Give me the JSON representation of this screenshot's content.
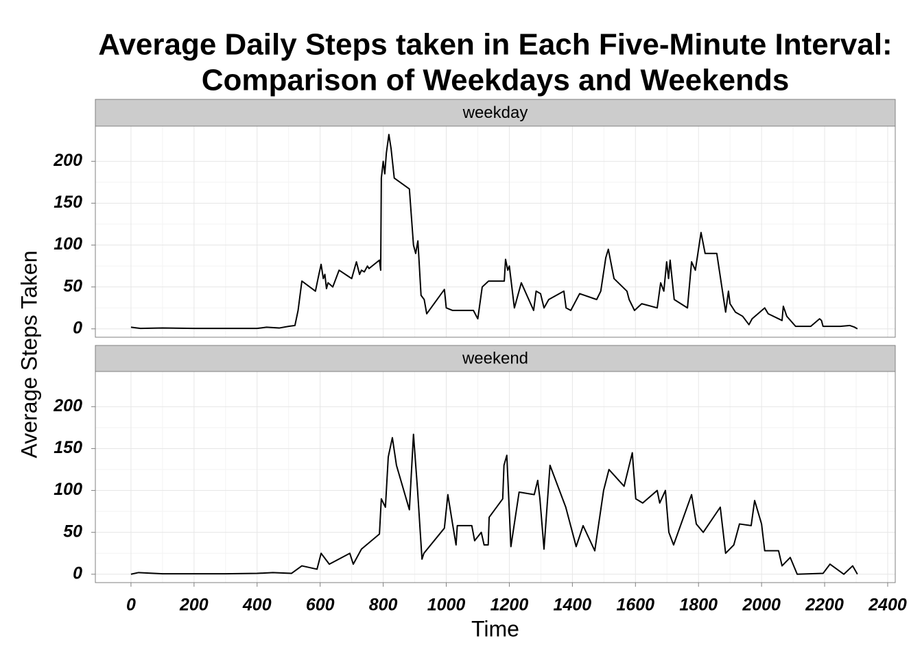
{
  "chart_data": {
    "type": "line",
    "title": [
      "Average Daily Steps taken in Each Five-Minute Interval:",
      "Comparison of Weekdays and Weekends"
    ],
    "x_label": "Time",
    "y_label": "Average Steps Taken",
    "xlim": [
      -113,
      2424
    ],
    "xticks": [
      0,
      200,
      400,
      600,
      800,
      1000,
      1200,
      1400,
      1600,
      1800,
      2000,
      2200,
      2400
    ],
    "ylim": [
      -10,
      242
    ],
    "yticks": [
      0,
      50,
      100,
      150,
      200
    ],
    "grid": true,
    "color": "#000000",
    "panels": [
      {
        "name": "weekday",
        "x": [
          0,
          30,
          100,
          200,
          300,
          400,
          430,
          470,
          500,
          520,
          530,
          542,
          585,
          596,
          603,
          610,
          615,
          620,
          625,
          640,
          660,
          700,
          715,
          725,
          731,
          740,
          750,
          755,
          788,
          792,
          794,
          800,
          805,
          810,
          818,
          825,
          835,
          883,
          896,
          903,
          910,
          920,
          930,
          938,
          994,
          1000,
          1020,
          1086,
          1100,
          1114,
          1134,
          1184,
          1188,
          1195,
          1200,
          1216,
          1238,
          1277,
          1285,
          1299,
          1310,
          1325,
          1373,
          1380,
          1395,
          1423,
          1477,
          1490,
          1506,
          1514,
          1532,
          1573,
          1580,
          1597,
          1620,
          1669,
          1680,
          1690,
          1699,
          1705,
          1710,
          1723,
          1765,
          1778,
          1790,
          1808,
          1821,
          1858,
          1886,
          1895,
          1900,
          1917,
          1940,
          1960,
          1970,
          2010,
          2021,
          2065,
          2069,
          2080,
          2108,
          2156,
          2184,
          2190,
          2195,
          2250,
          2280,
          2295,
          2304
        ],
        "values": [
          2,
          0.5,
          1,
          0.5,
          0.5,
          0.5,
          2,
          1,
          3,
          4,
          22,
          57,
          45,
          65,
          77,
          60,
          65,
          48,
          55,
          50,
          70,
          60,
          80,
          65,
          70,
          68,
          75,
          72,
          82,
          70,
          180,
          200,
          185,
          210,
          232,
          215,
          180,
          167,
          100,
          90,
          105,
          40,
          35,
          18,
          47,
          25,
          22,
          22,
          12,
          50,
          57,
          57,
          83,
          70,
          75,
          25,
          55,
          22,
          45,
          42,
          25,
          35,
          45,
          25,
          22,
          42,
          35,
          45,
          85,
          95,
          60,
          45,
          35,
          22,
          30,
          25,
          55,
          45,
          80,
          60,
          82,
          35,
          25,
          80,
          70,
          115,
          90,
          90,
          20,
          45,
          30,
          20,
          15,
          5,
          12,
          25,
          18,
          10,
          27,
          15,
          3,
          3,
          12,
          10,
          3,
          3,
          4,
          2,
          0
        ]
      },
      {
        "name": "weekend",
        "x": [
          0,
          24,
          100,
          200,
          300,
          400,
          450,
          509,
          542,
          590,
          603,
          629,
          694,
          705,
          731,
          788,
          794,
          807,
          816,
          829,
          842,
          883,
          896,
          909,
          923,
          929,
          994,
          1005,
          1020,
          1031,
          1035,
          1081,
          1090,
          1111,
          1120,
          1133,
          1136,
          1179,
          1183,
          1192,
          1205,
          1231,
          1279,
          1290,
          1297,
          1310,
          1329,
          1379,
          1412,
          1434,
          1471,
          1499,
          1516,
          1564,
          1590,
          1601,
          1623,
          1669,
          1677,
          1695,
          1706,
          1721,
          1778,
          1793,
          1815,
          1869,
          1886,
          1912,
          1930,
          1967,
          1978,
          2000,
          2010,
          2054,
          2065,
          2091,
          2113,
          2195,
          2217,
          2261,
          2289,
          2304
        ],
        "values": [
          0,
          2,
          0.5,
          0.5,
          0.5,
          1,
          2,
          1,
          10,
          6,
          25,
          12,
          25,
          12,
          30,
          48,
          90,
          80,
          140,
          163,
          130,
          77,
          167,
          100,
          18,
          25,
          55,
          95,
          60,
          35,
          58,
          58,
          40,
          50,
          35,
          35,
          68,
          90,
          130,
          142,
          33,
          98,
          95,
          112,
          90,
          30,
          130,
          80,
          33,
          58,
          28,
          100,
          125,
          105,
          145,
          90,
          85,
          100,
          85,
          100,
          50,
          35,
          95,
          60,
          50,
          80,
          25,
          35,
          60,
          58,
          88,
          60,
          28,
          28,
          10,
          20,
          0,
          1,
          12,
          0,
          10,
          0
        ]
      }
    ]
  }
}
